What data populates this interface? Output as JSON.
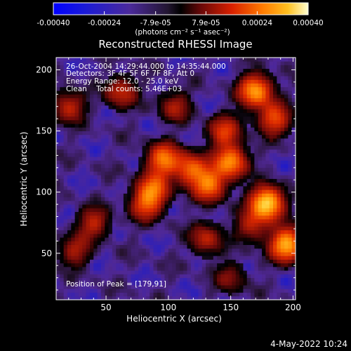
{
  "chart_data": {
    "type": "heatmap",
    "title": "Reconstructed RHESSI Image",
    "xlabel": "Heliocentric X (arcsec)",
    "ylabel": "Heliocentric Y (arcsec)",
    "xlim": [
      10,
      202
    ],
    "ylim": [
      12,
      210
    ],
    "x_ticks": [
      "50",
      "100",
      "150",
      "200"
    ],
    "y_ticks": [
      "50",
      "100",
      "150",
      "200"
    ],
    "x_tick_values": [
      50,
      100,
      150,
      200
    ],
    "y_tick_values": [
      50,
      100,
      150,
      200
    ],
    "colorbar": {
      "ticks": [
        "-0.00040",
        "-0.00024",
        "-7.9e-05",
        "7.9e-05",
        "0.00024",
        "0.00040"
      ],
      "tick_values": [
        -0.0004,
        -0.00024,
        -7.9e-05,
        7.9e-05,
        0.00024,
        0.0004
      ],
      "range": [
        -0.0004,
        0.0004
      ],
      "unit_label": "(photons cm⁻² s⁻¹ asec⁻²)"
    },
    "annotations": [
      "26-Oct-2004 14:29:44.000 to 14:35:44.000",
      "Detectors: 3F 4F 5F 6F 7F 8F, Att 0",
      "Energy Range: 12.0 - 25.0 keV",
      "Clean    Total counts: 5.46E+03"
    ],
    "peak_label": "Position of Peak = [179,91]",
    "peak": [
      179,
      91
    ],
    "sources": [
      {
        "x": 179,
        "y": 91,
        "value": 0.0004
      },
      {
        "x": 195,
        "y": 57,
        "value": 0.00034
      },
      {
        "x": 170,
        "y": 183,
        "value": 0.00031
      },
      {
        "x": 133,
        "y": 106,
        "value": 0.00026
      },
      {
        "x": 150,
        "y": 125,
        "value": 0.00029
      },
      {
        "x": 118,
        "y": 119,
        "value": 0.00023
      },
      {
        "x": 96,
        "y": 127,
        "value": 0.00026
      },
      {
        "x": 88,
        "y": 103,
        "value": 0.00022
      },
      {
        "x": 82,
        "y": 90,
        "value": 0.00019
      },
      {
        "x": 185,
        "y": 160,
        "value": 0.00021
      },
      {
        "x": 145,
        "y": 150,
        "value": 0.00018
      },
      {
        "x": 62,
        "y": 182,
        "value": 0.00016
      },
      {
        "x": 20,
        "y": 170,
        "value": 0.00016
      },
      {
        "x": 40,
        "y": 75,
        "value": 0.00015
      },
      {
        "x": 25,
        "y": 52,
        "value": 0.00013
      },
      {
        "x": 130,
        "y": 62,
        "value": 0.00015
      },
      {
        "x": 167,
        "y": 72,
        "value": 0.00014
      },
      {
        "x": 150,
        "y": 30,
        "value": 0.0001
      },
      {
        "x": 105,
        "y": 170,
        "value": 0.00013
      }
    ],
    "grid": false
  },
  "footer": {
    "timestamp": "4-May-2022 10:24"
  },
  "colors": {
    "background": "#000000",
    "text": "#ffffff",
    "colormap": [
      "#0000ff",
      "#2d1fb4",
      "#4e2a96",
      "#000000",
      "#8a1010",
      "#e83a00",
      "#ff8a00",
      "#ffff90"
    ]
  }
}
